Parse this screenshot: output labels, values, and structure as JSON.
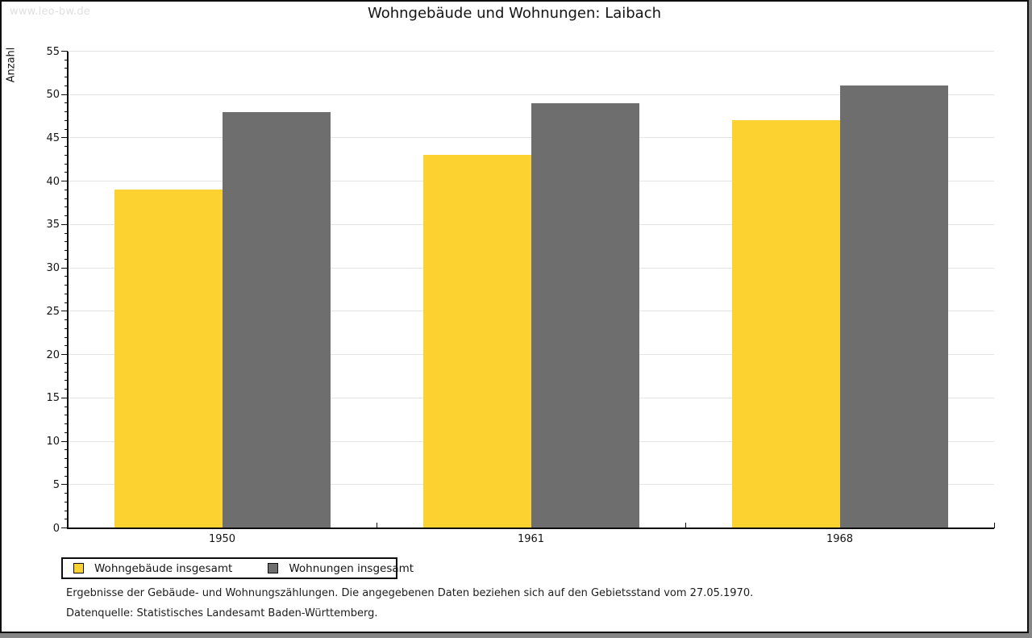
{
  "watermark": "www.leo-bw.de",
  "header": {
    "title": "Wohngebäude und Wohnungen: Laibach"
  },
  "footnotes": {
    "line1": "Ergebnisse der Gebäude- und Wohnungszählungen. Die angegebenen Daten beziehen sich auf den Gebietsstand vom 27.05.1970.",
    "line2": "Datenquelle: Statistisches Landesamt Baden-Württemberg."
  },
  "colors": {
    "series_yellow": "#FCD230",
    "series_gray": "#6E6E6E",
    "gridline": "#e4e4e4",
    "axis": "#0d0d0d",
    "watermark": "#e0e0e0",
    "canvas_background": "#ffffff",
    "page_shadow": "#7f7f7f"
  },
  "chart_data": {
    "type": "bar",
    "title": "Wohngebäude und Wohnungen: Laibach",
    "xlabel": "",
    "ylabel": "Anzahl",
    "categories": [
      "1950",
      "1961",
      "1968"
    ],
    "series": [
      {
        "name": "Wohngebäude insgesamt",
        "color": "#FCD230",
        "values": [
          39,
          43,
          47
        ]
      },
      {
        "name": "Wohnungen insgesamt",
        "color": "#6E6E6E",
        "values": [
          48,
          49,
          51
        ]
      }
    ],
    "ylim": [
      0,
      55
    ],
    "ytick_major_step": 5,
    "ytick_minor_step": 1,
    "grid": true,
    "legend_position": "bottom-left"
  }
}
